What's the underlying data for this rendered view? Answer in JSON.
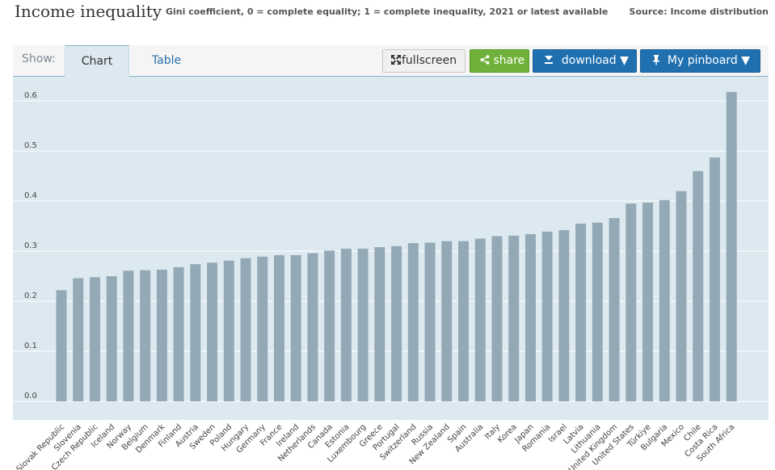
{
  "header": {
    "title": "Income inequality",
    "subtitle": "Gini coefficient, 0 = complete equality; 1 = complete inequality, 2021 or latest available",
    "source": "Source: Income distribution"
  },
  "toolbar": {
    "show_label": "Show:",
    "tabs": [
      {
        "label": "Chart"
      },
      {
        "label": "Table"
      }
    ],
    "fullscreen_label": "fullscreen",
    "share_label": "share",
    "download_label": "download",
    "pinboard_label": "My pinboard",
    "icons": {
      "fullscreen": "expand-icon",
      "share": "share-icon",
      "download": "download-icon",
      "pinboard": "pin-icon",
      "dropdown": "caret-down-icon"
    }
  },
  "colors": {
    "bar": "#94a9b6",
    "plot_bg": "#dde9f0",
    "gridline": "#ffffff",
    "share_button": "#6fb13a",
    "primary_button": "#2070b0"
  },
  "chart_data": {
    "type": "bar",
    "categories": [
      "Slovak Republic",
      "Slovenia",
      "Czech Republic",
      "Iceland",
      "Norway",
      "Belgium",
      "Denmark",
      "Finland",
      "Austria",
      "Sweden",
      "Poland",
      "Hungary",
      "Germany",
      "France",
      "Ireland",
      "Netherlands",
      "Canada",
      "Estonia",
      "Luxembourg",
      "Greece",
      "Portugal",
      "Switzerland",
      "Russia",
      "New Zealand",
      "Spain",
      "Australia",
      "Italy",
      "Korea",
      "Japan",
      "Romania",
      "Israel",
      "Latvia",
      "Lithuania",
      "United Kingdom",
      "United States",
      "Türkiye",
      "Bulgaria",
      "Mexico",
      "Chile",
      "Costa Rica",
      "South Africa"
    ],
    "values": [
      0.222,
      0.246,
      0.248,
      0.25,
      0.261,
      0.262,
      0.263,
      0.268,
      0.274,
      0.277,
      0.281,
      0.286,
      0.289,
      0.292,
      0.292,
      0.296,
      0.301,
      0.305,
      0.305,
      0.308,
      0.31,
      0.316,
      0.317,
      0.32,
      0.32,
      0.325,
      0.33,
      0.331,
      0.334,
      0.339,
      0.342,
      0.355,
      0.357,
      0.366,
      0.395,
      0.397,
      0.402,
      0.42,
      0.46,
      0.487,
      0.618
    ],
    "title": "",
    "xlabel": "",
    "ylabel": "",
    "ylim": [
      0,
      0.64
    ],
    "yticks": [
      0.0,
      0.1,
      0.2,
      0.3,
      0.4,
      0.5,
      0.6
    ],
    "grid": true,
    "legend": "none"
  }
}
